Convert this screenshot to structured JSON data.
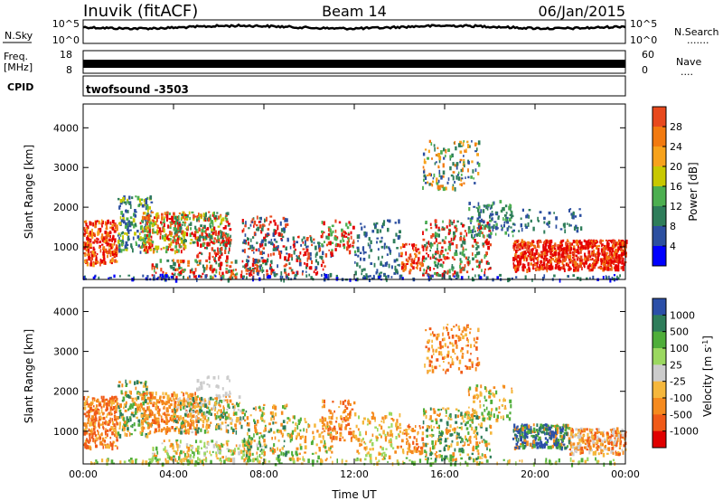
{
  "header": {
    "station": "Inuvik (fitACF)",
    "beam": "Beam 14",
    "date": "06/Jan/2015"
  },
  "top_panels": {
    "nsky_label": "N.Sky",
    "nsky_ticks": [
      "10^5",
      "10^0"
    ],
    "nsearch_label": "N.Search",
    "nsearch_ticks": [
      "10^5",
      "10^0"
    ],
    "freq_label_1": "Freq.",
    "freq_label_2": "[MHz]",
    "freq_ticks": [
      "18",
      "8"
    ],
    "nave_label": "Nave",
    "nave_ticks": [
      "60",
      "0"
    ],
    "cpid_label": "CPID",
    "cpid_value": "twofsound -3503"
  },
  "colors": {
    "power_scale": [
      "#0000ff",
      "#2c4fa0",
      "#2e7d5a",
      "#4caf50",
      "#c8c800",
      "#f7a21b",
      "#f27a10",
      "#e8491d",
      "#e60000"
    ],
    "velocity_scale": [
      "#e00000",
      "#f05a18",
      "#f58a1e",
      "#f5b73c",
      "#cccccc",
      "#9bd860",
      "#4fae3a",
      "#2e7d5a",
      "#2b4fa8"
    ]
  },
  "chart_data": [
    {
      "type": "heatmap",
      "title": "",
      "xlabel": "Time UT",
      "ylabel": "Slant Range [km]",
      "x_ticks": [
        "00:00",
        "04:00",
        "08:00",
        "12:00",
        "16:00",
        "20:00",
        "00:00"
      ],
      "y_ticks": [
        "1000",
        "2000",
        "3000",
        "4000"
      ],
      "xlim": [
        0,
        24
      ],
      "ylim": [
        180,
        4600
      ],
      "colorbar_label": "Power [dB]",
      "colorbar_ticks": [
        "28",
        "24",
        "20",
        "16",
        "12",
        "8",
        "4"
      ],
      "colorbar_range": [
        0,
        32
      ]
    },
    {
      "type": "heatmap",
      "title": "",
      "xlabel": "Time UT",
      "ylabel": "Slant Range [km]",
      "x_ticks": [
        "00:00",
        "04:00",
        "08:00",
        "12:00",
        "16:00",
        "20:00",
        "00:00"
      ],
      "y_ticks": [
        "1000",
        "2000",
        "3000",
        "4000"
      ],
      "xlim": [
        0,
        24
      ],
      "ylim": [
        180,
        4600
      ],
      "colorbar_label": "Velocity [m s^-1]",
      "colorbar_ticks": [
        "1000",
        "500",
        "100",
        "25",
        "-25",
        "-100",
        "-500",
        "-1000"
      ]
    }
  ]
}
